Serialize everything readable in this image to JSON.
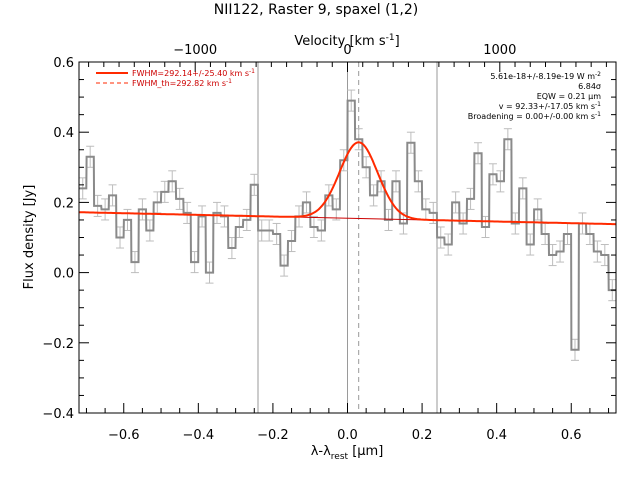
{
  "chart_data": {
    "type": "line",
    "title": "NII122, Raster 9, spaxel (1,2)",
    "xlabel": "λ-λ",
    "xlabel_sub": "rest",
    "xlabel_unit": " [μm]",
    "ylabel": "Flux density [Jy]",
    "top_axis": {
      "label": "Velocity [km s",
      "label_sup": "-1",
      "label_end": "]",
      "ticks": [
        -1000,
        0,
        1000
      ],
      "tick_labels": [
        "−1000",
        "0",
        "1000"
      ],
      "xlim": [
        -1763,
        1763
      ]
    },
    "xlim": [
      -0.72,
      0.72
    ],
    "ylim": [
      -0.4,
      0.6
    ],
    "xticks": [
      -0.6,
      -0.4,
      -0.2,
      0.0,
      0.2,
      0.4,
      0.6
    ],
    "xtick_labels": [
      "−0.6",
      "−0.4",
      "−0.2",
      "0.0",
      "0.2",
      "0.4",
      "0.6"
    ],
    "yticks": [
      -0.4,
      -0.2,
      0.0,
      0.2,
      0.4,
      0.6
    ],
    "ytick_labels": [
      "−0.4",
      "−0.2",
      "0.0",
      "0.2",
      "0.4",
      "0.6"
    ],
    "vlines": [
      -0.24,
      0.0,
      0.24
    ],
    "dashed_vline": 0.03,
    "bin_width": 0.0192,
    "spectrum_x": [
      -0.71,
      -0.69,
      -0.67,
      -0.65,
      -0.63,
      -0.61,
      -0.59,
      -0.57,
      -0.55,
      -0.53,
      -0.51,
      -0.49,
      -0.47,
      -0.45,
      -0.43,
      -0.41,
      -0.39,
      -0.37,
      -0.35,
      -0.33,
      -0.31,
      -0.29,
      -0.27,
      -0.25,
      -0.23,
      -0.21,
      -0.19,
      -0.17,
      -0.15,
      -0.13,
      -0.11,
      -0.09,
      -0.07,
      -0.05,
      -0.03,
      -0.01,
      0.01,
      0.03,
      0.05,
      0.07,
      0.09,
      0.11,
      0.13,
      0.15,
      0.17,
      0.19,
      0.21,
      0.23,
      0.25,
      0.27,
      0.29,
      0.31,
      0.33,
      0.35,
      0.37,
      0.39,
      0.41,
      0.43,
      0.45,
      0.47,
      0.49,
      0.51,
      0.53,
      0.55,
      0.57,
      0.59,
      0.61,
      0.63,
      0.65,
      0.67,
      0.69,
      0.71
    ],
    "spectrum_y": [
      0.24,
      0.33,
      0.19,
      0.18,
      0.22,
      0.1,
      0.15,
      0.03,
      0.18,
      0.12,
      0.2,
      0.23,
      0.26,
      0.21,
      0.17,
      0.03,
      0.16,
      0.0,
      0.17,
      0.16,
      0.07,
      0.13,
      0.15,
      0.25,
      0.12,
      0.12,
      0.11,
      0.02,
      0.09,
      0.16,
      0.2,
      0.13,
      0.12,
      0.22,
      0.18,
      0.32,
      0.49,
      0.38,
      0.3,
      0.22,
      0.26,
      0.15,
      0.26,
      0.14,
      0.37,
      0.26,
      0.18,
      0.17,
      0.1,
      0.08,
      0.2,
      0.14,
      0.21,
      0.34,
      0.13,
      0.28,
      0.26,
      0.38,
      0.14,
      0.24,
      0.08,
      0.18,
      0.11,
      0.05,
      0.06,
      0.11,
      -0.22,
      0.14,
      0.11,
      0.06,
      0.05,
      -0.05
    ],
    "spectrum_err": 0.03,
    "fit": {
      "baseline_start": 0.172,
      "baseline_end": 0.138,
      "peak_center": 0.03,
      "peak_amplitude": 0.217,
      "peak_fwhm": 0.12
    },
    "legend": [
      {
        "label": "FWHM=292.14+/-25.40 km s",
        "sup": "-1",
        "style": "solid"
      },
      {
        "label": "FWHM_th=292.82 km s",
        "sup": "-1",
        "style": "dashed"
      }
    ],
    "annotations": [
      {
        "text": "5.61e-18+/-8.19e-19 W m",
        "sup": "-2"
      },
      {
        "text": "6.84σ",
        "sup": ""
      },
      {
        "text": "EQW = 0.21 μm",
        "sup": ""
      },
      {
        "text": "v = 92.33+/-17.05 km s",
        "sup": "-1"
      },
      {
        "text": "Broadening = 0.00+/-0.00 km s",
        "sup": "-1"
      }
    ],
    "colors": {
      "spectrum": "#8a8a8a",
      "errorbar": "#bdbdbd",
      "fit": "#ff2a00",
      "baseline": "#cc0000",
      "legend_text": "#cc0000",
      "vline": "#9a9a9a"
    },
    "grid": false
  }
}
